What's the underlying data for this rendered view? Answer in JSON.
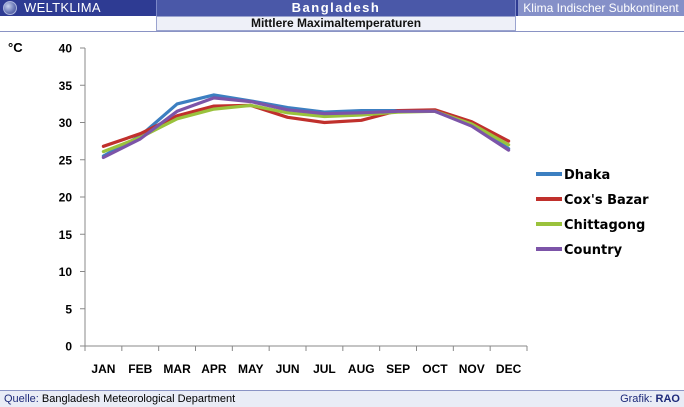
{
  "header": {
    "brand": "WELTKLIMA",
    "country": "Bangladesh",
    "region": "Klima Indischer Subkontinent",
    "subtitle": "Mittlere Maximaltemperaturen"
  },
  "footer": {
    "source_label": "Quelle:",
    "source_value": "Bangladesh Meteorological Department",
    "credit_label": "Grafik:",
    "credit_value": "RAO"
  },
  "icons": {
    "brand_icon": "globe-icon"
  },
  "chart_data": {
    "type": "line",
    "title": "",
    "unit_label": "°C",
    "xlabel": "",
    "ylabel": "",
    "categories": [
      "JAN",
      "FEB",
      "MAR",
      "APR",
      "MAY",
      "JUN",
      "JUL",
      "AUG",
      "SEP",
      "OCT",
      "NOV",
      "DEC"
    ],
    "ylim": [
      0,
      40
    ],
    "yticks": [
      0,
      5,
      10,
      15,
      20,
      25,
      30,
      35,
      40
    ],
    "grid": false,
    "legend_position": "right",
    "series": [
      {
        "name": "Dhaka",
        "color": "#3c7fc1",
        "values": [
          25.5,
          28.2,
          32.5,
          33.7,
          32.9,
          32.0,
          31.4,
          31.6,
          31.6,
          31.5,
          29.6,
          26.5
        ]
      },
      {
        "name": "Cox's  Bazar",
        "color": "#c0302c",
        "values": [
          26.8,
          28.5,
          30.9,
          32.2,
          32.3,
          30.7,
          30.0,
          30.3,
          31.6,
          31.7,
          30.1,
          27.5
        ]
      },
      {
        "name": "Chittagong",
        "color": "#9ac23c",
        "values": [
          26.1,
          28.0,
          30.5,
          31.8,
          32.3,
          31.3,
          30.8,
          31.0,
          31.4,
          31.5,
          29.8,
          27.0
        ]
      },
      {
        "name": "Country",
        "color": "#7c54a8",
        "values": [
          25.3,
          27.8,
          31.5,
          33.3,
          32.8,
          31.7,
          31.2,
          31.3,
          31.5,
          31.5,
          29.5,
          26.3
        ]
      }
    ]
  }
}
